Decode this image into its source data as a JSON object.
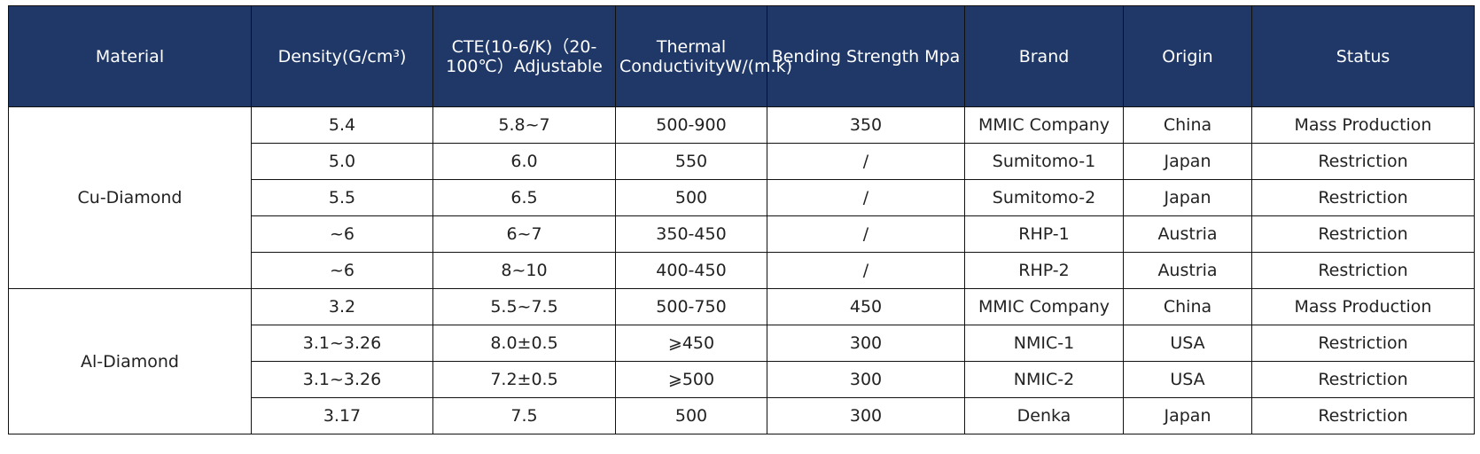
{
  "table": {
    "header": [
      "Material",
      "Density(G/cm³)",
      "CTE(10-6/K)（20-100℃）Adjustable",
      "Thermal ConductivityW/(m.k)",
      "Bending Strength Mpa",
      "Brand",
      "Origin",
      "Status"
    ],
    "groups": [
      {
        "material": "Cu-Diamond",
        "rows": [
          [
            "5.4",
            "5.8~7",
            "500-900",
            "350",
            "MMIC Company",
            "China",
            "Mass Production"
          ],
          [
            "5.0",
            "6.0",
            "550",
            "/",
            "Sumitomo-1",
            "Japan",
            "Restriction"
          ],
          [
            "5.5",
            "6.5",
            "500",
            "/",
            "Sumitomo-2",
            "Japan",
            "Restriction"
          ],
          [
            "~6",
            "6~7",
            "350-450",
            "/",
            "RHP-1",
            "Austria",
            "Restriction"
          ],
          [
            "~6",
            "8~10",
            "400-450",
            "/",
            "RHP-2",
            "Austria",
            "Restriction"
          ]
        ]
      },
      {
        "material": "Al-Diamond",
        "rows": [
          [
            "3.2",
            "5.5~7.5",
            "500-750",
            "450",
            "MMIC Company",
            "China",
            "Mass Production"
          ],
          [
            "3.1~3.26",
            "8.0±0.5",
            "⩾450",
            "300",
            "NMIC-1",
            "USA",
            "Restriction"
          ],
          [
            "3.1~3.26",
            "7.2±0.5",
            "⩾500",
            "300",
            "NMIC-2",
            "USA",
            "Restriction"
          ],
          [
            "3.17",
            "7.5",
            "500",
            "300",
            "Denka",
            "Japan",
            "Restriction"
          ]
        ]
      }
    ]
  }
}
